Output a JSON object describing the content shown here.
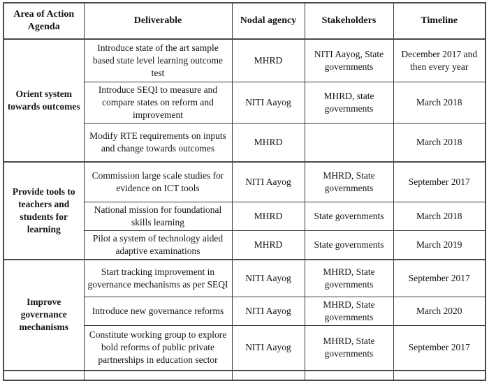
{
  "table": {
    "columns": [
      "Area of Action Agenda",
      "Deliverable",
      "Nodal agency",
      "Stakeholders",
      "Timeline"
    ],
    "sections": [
      {
        "area": "Orient system towards outcomes",
        "rows": [
          {
            "deliverable": "Introduce state of the art sample based state level learning outcome test",
            "nodal_agency": "MHRD",
            "stakeholders": "NITI Aayog, State governments",
            "timeline": "December 2017 and then every year"
          },
          {
            "deliverable": "Introduce SEQI to measure and compare states on reform and improvement",
            "nodal_agency": "NITI Aayog",
            "stakeholders": "MHRD, state governments",
            "timeline": "March 2018"
          },
          {
            "deliverable": "Modify RTE requirements on inputs and change towards outcomes",
            "nodal_agency": "MHRD",
            "stakeholders": "",
            "timeline": "March 2018"
          }
        ]
      },
      {
        "area": "Provide tools to teachers and students for learning",
        "rows": [
          {
            "deliverable": "Commission large scale studies for evidence on ICT tools",
            "nodal_agency": "NITI Aayog",
            "stakeholders": "MHRD, State governments",
            "timeline": "September 2017"
          },
          {
            "deliverable": "National mission for foundational skills learning",
            "nodal_agency": "MHRD",
            "stakeholders": "State governments",
            "timeline": "March 2018"
          },
          {
            "deliverable": "Pilot a system of technology aided adaptive examinations",
            "nodal_agency": "MHRD",
            "stakeholders": "State governments",
            "timeline": "March 2019"
          }
        ]
      },
      {
        "area": "Improve governance mechanisms",
        "rows": [
          {
            "deliverable": "Start tracking improvement in governance mechanisms as per SEQI",
            "nodal_agency": "NITI Aayog",
            "stakeholders": "MHRD, State governments",
            "timeline": "September 2017"
          },
          {
            "deliverable": "Introduce new governance reforms",
            "nodal_agency": "NITI Aayog",
            "stakeholders": "MHRD, State governments",
            "timeline": "March 2020"
          },
          {
            "deliverable": "Constitute working group to explore bold reforms of public private partnerships in education sector",
            "nodal_agency": "NITI Aayog",
            "stakeholders": "MHRD, State governments",
            "timeline": "September 2017"
          }
        ]
      }
    ]
  }
}
